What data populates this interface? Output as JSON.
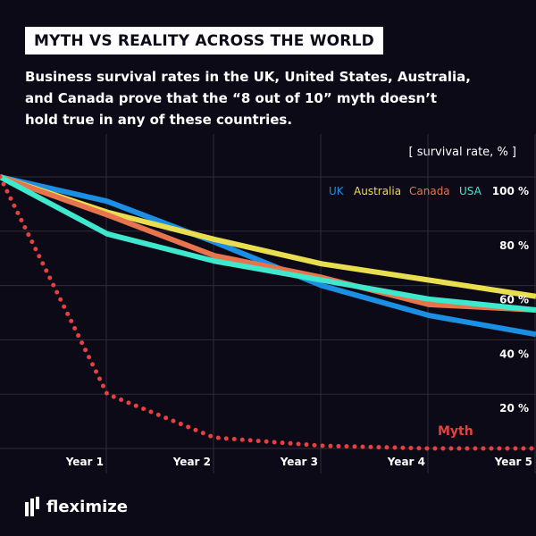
{
  "title": "MYTH VS REALITY ACROSS THE WORLD",
  "subtitle": "Business survival rates in the UK, United States, Australia, and Canada prove that the “8 out of 10” myth doesn’t hold true in any of these countries.",
  "unit_label": "[ survival rate, % ]",
  "brand": "fleximize",
  "chart_data": {
    "type": "line",
    "x": [
      0,
      1,
      2,
      3,
      4,
      5
    ],
    "x_tick_labels": [
      "Year 1",
      "Year 2",
      "Year 3",
      "Year 4",
      "Year 5"
    ],
    "y_tick_labels": [
      "20 %",
      "40 %",
      "60 %",
      "80 %",
      "100 %"
    ],
    "ylim": [
      0,
      100
    ],
    "grid": true,
    "legend_position": "top-right",
    "series": [
      {
        "name": "UK",
        "color": "#1a8fe3",
        "values": [
          100,
          91,
          76,
          60,
          49,
          42
        ]
      },
      {
        "name": "Australia",
        "color": "#e8de4f",
        "values": [
          100,
          87,
          77,
          68,
          62,
          56
        ]
      },
      {
        "name": "Canada",
        "color": "#e8744e",
        "values": [
          100,
          86,
          71,
          63,
          53,
          51
        ]
      },
      {
        "name": "USA",
        "color": "#3ee8cc",
        "values": [
          100,
          79,
          69,
          62,
          55,
          51
        ]
      },
      {
        "name": "Myth",
        "color": "#e8403e",
        "dashed": true,
        "label_on_chart": true,
        "values": [
          100,
          20,
          4,
          1,
          0,
          0
        ]
      }
    ]
  }
}
